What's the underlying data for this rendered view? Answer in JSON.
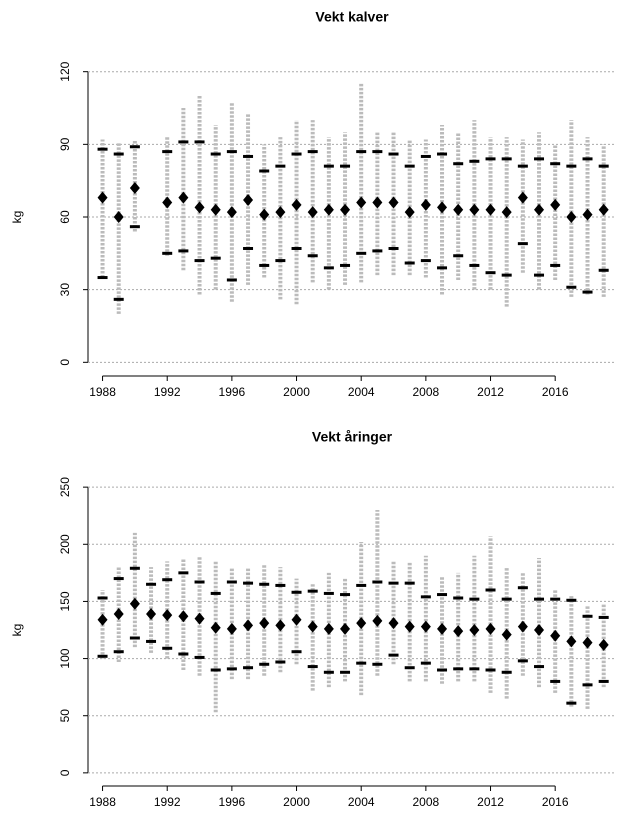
{
  "chart_data": [
    {
      "type": "strip",
      "title": "Vekt kalver",
      "y_label": "kg",
      "x": [
        1988,
        1989,
        1990,
        1991,
        1992,
        1993,
        1994,
        1995,
        1996,
        1997,
        1998,
        1999,
        2000,
        2001,
        2002,
        2003,
        2004,
        2005,
        2006,
        2007,
        2008,
        2009,
        2010,
        2011,
        2012,
        2013,
        2014,
        2015,
        2016,
        2017,
        2018,
        2019
      ],
      "mean": [
        68,
        60,
        72,
        null,
        66,
        68,
        64,
        63,
        62,
        67,
        61,
        62,
        65,
        62,
        63,
        63,
        66,
        66,
        66,
        62,
        65,
        64,
        63,
        63,
        63,
        62,
        68,
        63,
        65,
        60,
        61,
        63
      ],
      "upper": [
        88,
        86,
        89,
        null,
        87,
        91,
        91,
        86,
        87,
        85,
        79,
        81,
        86,
        87,
        81,
        81,
        87,
        87,
        86,
        81,
        85,
        86,
        82,
        83,
        84,
        84,
        81,
        84,
        82,
        81,
        84,
        81
      ],
      "lower": [
        35,
        26,
        56,
        null,
        45,
        46,
        42,
        43,
        34,
        47,
        40,
        42,
        47,
        44,
        39,
        40,
        45,
        46,
        47,
        41,
        42,
        39,
        44,
        40,
        37,
        36,
        49,
        36,
        40,
        31,
        29,
        38
      ],
      "min": [
        35,
        20,
        54,
        null,
        44,
        38,
        28,
        30,
        25,
        32,
        35,
        26,
        24,
        33,
        30,
        32,
        33,
        36,
        36,
        36,
        35,
        28,
        34,
        30,
        30,
        23,
        37,
        30,
        34,
        27,
        28,
        27
      ],
      "max": [
        92,
        91,
        92,
        null,
        93,
        105,
        110,
        98,
        107,
        103,
        90,
        93,
        100,
        100,
        93,
        95,
        115,
        95,
        95,
        92,
        92,
        98,
        95,
        100,
        93,
        93,
        92,
        95,
        90,
        100,
        93,
        90
      ],
      "xlim": [
        1987.1,
        2019.7
      ],
      "xticks": [
        1988,
        1992,
        1996,
        2000,
        2004,
        2008,
        2012,
        2016
      ],
      "ylim": [
        -4,
        124
      ],
      "yticks": [
        0,
        30,
        60,
        90,
        120
      ],
      "grid": true,
      "point_color": "#bbbbbb",
      "mark_color": "#000000"
    },
    {
      "type": "strip",
      "title": "Vekt åringer",
      "y_label": "kg",
      "x": [
        1988,
        1989,
        1990,
        1991,
        1992,
        1993,
        1994,
        1995,
        1996,
        1997,
        1998,
        1999,
        2000,
        2001,
        2002,
        2003,
        2004,
        2005,
        2006,
        2007,
        2008,
        2009,
        2010,
        2011,
        2012,
        2013,
        2014,
        2015,
        2016,
        2017,
        2018,
        2019
      ],
      "mean": [
        134,
        139,
        148,
        139,
        138,
        137,
        135,
        127,
        126,
        129,
        131,
        129,
        134,
        128,
        126,
        126,
        131,
        133,
        131,
        128,
        128,
        126,
        124,
        125,
        126,
        121,
        128,
        125,
        120,
        115,
        114,
        112
      ],
      "upper": [
        153,
        170,
        179,
        165,
        169,
        175,
        167,
        157,
        167,
        166,
        165,
        164,
        158,
        159,
        157,
        156,
        164,
        167,
        166,
        166,
        154,
        156,
        153,
        152,
        160,
        152,
        162,
        152,
        152,
        151,
        137,
        136
      ],
      "lower": [
        102,
        106,
        118,
        115,
        109,
        104,
        101,
        90,
        91,
        92,
        95,
        97,
        106,
        93,
        88,
        88,
        96,
        95,
        103,
        92,
        96,
        90,
        91,
        91,
        90,
        88,
        98,
        93,
        80,
        61,
        77,
        80
      ],
      "min": [
        100,
        97,
        110,
        105,
        100,
        90,
        85,
        53,
        82,
        82,
        85,
        88,
        95,
        72,
        75,
        80,
        68,
        85,
        95,
        80,
        80,
        78,
        80,
        80,
        70,
        65,
        85,
        75,
        70,
        58,
        56,
        75
      ],
      "max": [
        160,
        180,
        210,
        180,
        185,
        188,
        190,
        185,
        180,
        180,
        182,
        180,
        170,
        165,
        175,
        170,
        202,
        230,
        185,
        185,
        190,
        172,
        175,
        190,
        207,
        180,
        175,
        188,
        160,
        155,
        147,
        148
      ],
      "xlim": [
        1987.1,
        2019.7
      ],
      "xticks": [
        1988,
        1992,
        1996,
        2000,
        2004,
        2008,
        2012,
        2016
      ],
      "ylim": [
        -8,
        258
      ],
      "yticks": [
        0,
        50,
        100,
        150,
        200,
        250
      ],
      "grid": true,
      "point_color": "#bbbbbb",
      "mark_color": "#000000"
    }
  ]
}
